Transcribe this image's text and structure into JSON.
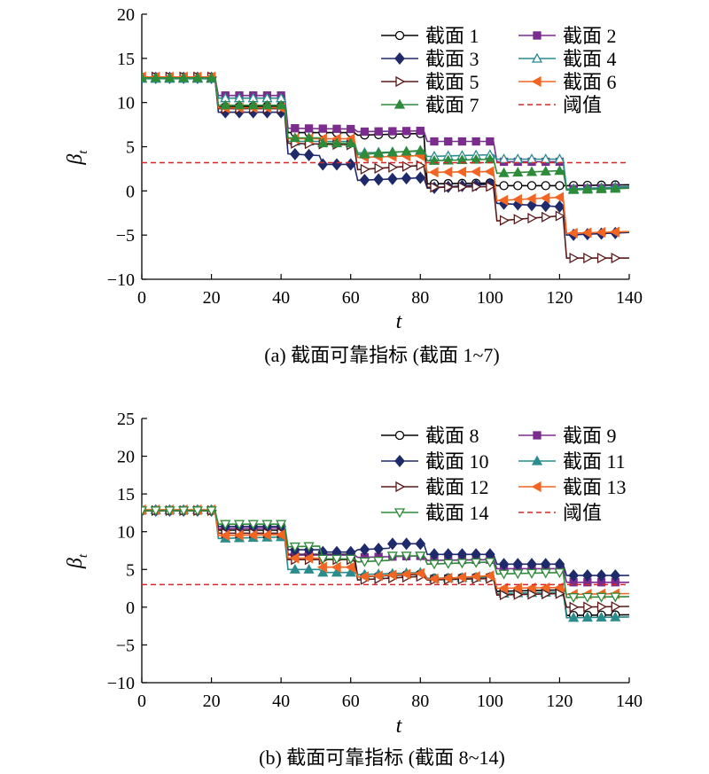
{
  "chart_data": [
    {
      "type": "line",
      "caption": "(a) 截面可靠指标 (截面 1~7)",
      "xlabel": "t",
      "ylabel": "β",
      "ylabel_sub": "t",
      "xlim": [
        0,
        140
      ],
      "ylim": [
        -10,
        20
      ],
      "xticks": [
        0,
        20,
        40,
        60,
        80,
        100,
        120,
        140
      ],
      "yticks": [
        -10,
        -5,
        0,
        5,
        10,
        15,
        20
      ],
      "legend_position": "top-right",
      "threshold": {
        "name": "阈值",
        "value": 3.2,
        "color": "#d62728"
      },
      "series": [
        {
          "name": "截面 1",
          "color": "#000000",
          "marker": "circle-open",
          "points": [
            [
              0,
              12.8
            ],
            [
              21,
              12.8
            ],
            [
              22,
              9.5
            ],
            [
              41,
              9.6
            ],
            [
              42,
              6.6
            ],
            [
              61,
              6.6
            ],
            [
              62,
              6.3
            ],
            [
              81,
              6.5
            ],
            [
              82,
              0.8
            ],
            [
              101,
              0.9
            ],
            [
              102,
              0.6
            ],
            [
              121,
              0.6
            ],
            [
              122,
              0.6
            ],
            [
              140,
              0.7
            ]
          ]
        },
        {
          "name": "截面 2",
          "color": "#7b2d8e",
          "marker": "square",
          "points": [
            [
              0,
              12.9
            ],
            [
              21,
              12.9
            ],
            [
              22,
              10.8
            ],
            [
              41,
              10.8
            ],
            [
              42,
              7.1
            ],
            [
              61,
              7.0
            ],
            [
              62,
              6.7
            ],
            [
              81,
              6.8
            ],
            [
              82,
              5.6
            ],
            [
              101,
              5.6
            ],
            [
              102,
              3.3
            ],
            [
              121,
              3.3
            ],
            [
              122,
              0.2
            ],
            [
              140,
              0.4
            ]
          ]
        },
        {
          "name": "截面 3",
          "color": "#1f2a6b",
          "marker": "diamond",
          "points": [
            [
              0,
              12.8
            ],
            [
              21,
              12.8
            ],
            [
              22,
              8.9
            ],
            [
              41,
              8.9
            ],
            [
              42,
              4.2
            ],
            [
              51,
              4.0
            ],
            [
              52,
              3.0
            ],
            [
              61,
              3.0
            ],
            [
              62,
              1.2
            ],
            [
              81,
              1.5
            ],
            [
              82,
              0.3
            ],
            [
              101,
              0.8
            ],
            [
              102,
              -1.4
            ],
            [
              121,
              -1.8
            ],
            [
              122,
              -5.0
            ],
            [
              140,
              -4.7
            ]
          ]
        },
        {
          "name": "截面 4",
          "color": "#2a8c8c",
          "marker": "triangle-open",
          "points": [
            [
              0,
              12.7
            ],
            [
              21,
              12.7
            ],
            [
              22,
              10.5
            ],
            [
              41,
              10.5
            ],
            [
              42,
              5.6
            ],
            [
              61,
              5.6
            ],
            [
              62,
              4.3
            ],
            [
              81,
              4.5
            ],
            [
              82,
              3.9
            ],
            [
              101,
              4.1
            ],
            [
              102,
              3.6
            ],
            [
              121,
              3.6
            ],
            [
              122,
              0.2
            ],
            [
              140,
              0.5
            ]
          ]
        },
        {
          "name": "截面 5",
          "color": "#5a1a1a",
          "marker": "triangle-right-open",
          "points": [
            [
              0,
              12.9
            ],
            [
              21,
              12.9
            ],
            [
              22,
              9.3
            ],
            [
              41,
              9.3
            ],
            [
              42,
              5.4
            ],
            [
              61,
              5.2
            ],
            [
              62,
              2.4
            ],
            [
              81,
              2.9
            ],
            [
              82,
              0.4
            ],
            [
              101,
              0.5
            ],
            [
              102,
              -3.4
            ],
            [
              121,
              -2.8
            ],
            [
              122,
              -7.6
            ],
            [
              140,
              -7.6
            ]
          ]
        },
        {
          "name": "截面 6",
          "color": "#f26522",
          "marker": "triangle-left",
          "points": [
            [
              0,
              12.9
            ],
            [
              21,
              12.9
            ],
            [
              22,
              9.4
            ],
            [
              41,
              9.4
            ],
            [
              42,
              5.9
            ],
            [
              61,
              5.9
            ],
            [
              62,
              3.8
            ],
            [
              81,
              4.0
            ],
            [
              82,
              2.1
            ],
            [
              101,
              2.2
            ],
            [
              102,
              -1.1
            ],
            [
              121,
              -0.7
            ],
            [
              122,
              -4.8
            ],
            [
              140,
              -4.6
            ]
          ]
        },
        {
          "name": "截面 7",
          "color": "#2e8b3a",
          "marker": "triangle",
          "points": [
            [
              0,
              12.8
            ],
            [
              21,
              12.8
            ],
            [
              22,
              9.7
            ],
            [
              41,
              9.7
            ],
            [
              42,
              6.0
            ],
            [
              51,
              6.0
            ],
            [
              52,
              5.4
            ],
            [
              61,
              5.4
            ],
            [
              62,
              4.1
            ],
            [
              81,
              4.6
            ],
            [
              82,
              3.4
            ],
            [
              101,
              3.6
            ],
            [
              102,
              2.0
            ],
            [
              121,
              2.3
            ],
            [
              122,
              0.1
            ],
            [
              140,
              0.3
            ]
          ]
        }
      ]
    },
    {
      "type": "line",
      "caption": "(b) 截面可靠指标 (截面 8~14)",
      "xlabel": "t",
      "ylabel": "β",
      "ylabel_sub": "t",
      "xlim": [
        0,
        140
      ],
      "ylim": [
        -10,
        25
      ],
      "xticks": [
        0,
        20,
        40,
        60,
        80,
        100,
        120,
        140
      ],
      "yticks": [
        -10,
        -5,
        0,
        5,
        10,
        15,
        20,
        25
      ],
      "legend_position": "top-right",
      "threshold": {
        "name": "阈值",
        "value": 3.0,
        "color": "#d62728"
      },
      "series": [
        {
          "name": "截面 8",
          "color": "#000000",
          "marker": "circle-open",
          "points": [
            [
              0,
              12.8
            ],
            [
              21,
              12.8
            ],
            [
              22,
              10.2
            ],
            [
              41,
              10.2
            ],
            [
              42,
              7.0
            ],
            [
              61,
              7.0
            ],
            [
              62,
              4.0
            ],
            [
              81,
              4.4
            ],
            [
              82,
              3.8
            ],
            [
              101,
              4.0
            ],
            [
              102,
              2.1
            ],
            [
              121,
              2.3
            ],
            [
              122,
              -1.1
            ],
            [
              140,
              -1.0
            ]
          ]
        },
        {
          "name": "截面 9",
          "color": "#7b2d8e",
          "marker": "square",
          "points": [
            [
              0,
              12.8
            ],
            [
              21,
              12.8
            ],
            [
              22,
              10.4
            ],
            [
              41,
              10.5
            ],
            [
              42,
              6.9
            ],
            [
              61,
              6.9
            ],
            [
              62,
              6.6
            ],
            [
              81,
              6.8
            ],
            [
              82,
              6.2
            ],
            [
              101,
              6.3
            ],
            [
              102,
              5.1
            ],
            [
              121,
              5.1
            ],
            [
              122,
              3.3
            ],
            [
              140,
              3.3
            ]
          ]
        },
        {
          "name": "截面 10",
          "color": "#1f2a6b",
          "marker": "diamond",
          "points": [
            [
              0,
              12.8
            ],
            [
              21,
              12.8
            ],
            [
              22,
              10.7
            ],
            [
              41,
              10.7
            ],
            [
              42,
              7.6
            ],
            [
              51,
              7.6
            ],
            [
              52,
              7.3
            ],
            [
              61,
              7.3
            ],
            [
              62,
              7.6
            ],
            [
              71,
              7.8
            ],
            [
              72,
              8.4
            ],
            [
              81,
              8.4
            ],
            [
              82,
              7.0
            ],
            [
              101,
              7.0
            ],
            [
              102,
              5.7
            ],
            [
              121,
              5.7
            ],
            [
              122,
              4.2
            ],
            [
              140,
              4.2
            ]
          ]
        },
        {
          "name": "截面 11",
          "color": "#2a8c8c",
          "marker": "triangle",
          "points": [
            [
              0,
              12.9
            ],
            [
              21,
              12.9
            ],
            [
              22,
              9.1
            ],
            [
              41,
              9.3
            ],
            [
              42,
              5.0
            ],
            [
              51,
              5.0
            ],
            [
              52,
              4.6
            ],
            [
              61,
              4.6
            ],
            [
              62,
              4.3
            ],
            [
              81,
              4.6
            ],
            [
              82,
              3.8
            ],
            [
              101,
              4.0
            ],
            [
              102,
              1.8
            ],
            [
              121,
              2.0
            ],
            [
              122,
              -1.4
            ],
            [
              140,
              -1.3
            ]
          ]
        },
        {
          "name": "截面 12",
          "color": "#5a1a1a",
          "marker": "triangle-right-open",
          "points": [
            [
              0,
              12.8
            ],
            [
              21,
              12.8
            ],
            [
              22,
              9.8
            ],
            [
              41,
              9.8
            ],
            [
              42,
              6.3
            ],
            [
              61,
              6.3
            ],
            [
              62,
              3.6
            ],
            [
              81,
              4.1
            ],
            [
              82,
              3.6
            ],
            [
              101,
              3.8
            ],
            [
              102,
              1.6
            ],
            [
              121,
              1.8
            ],
            [
              122,
              0.0
            ],
            [
              140,
              0.1
            ]
          ]
        },
        {
          "name": "截面 13",
          "color": "#f26522",
          "marker": "triangle-left",
          "points": [
            [
              0,
              12.9
            ],
            [
              21,
              12.9
            ],
            [
              22,
              9.5
            ],
            [
              41,
              9.6
            ],
            [
              42,
              6.5
            ],
            [
              51,
              6.5
            ],
            [
              52,
              5.3
            ],
            [
              61,
              5.3
            ],
            [
              62,
              4.0
            ],
            [
              81,
              4.5
            ],
            [
              82,
              3.7
            ],
            [
              101,
              4.2
            ],
            [
              102,
              2.5
            ],
            [
              121,
              2.6
            ],
            [
              122,
              1.7
            ],
            [
              140,
              1.8
            ]
          ]
        },
        {
          "name": "截面 14",
          "color": "#2e8b3a",
          "marker": "triangle-down-open",
          "points": [
            [
              0,
              12.8
            ],
            [
              21,
              12.8
            ],
            [
              22,
              11.0
            ],
            [
              41,
              11.0
            ],
            [
              42,
              8.0
            ],
            [
              51,
              8.1
            ],
            [
              52,
              6.4
            ],
            [
              61,
              6.4
            ],
            [
              62,
              6.0
            ],
            [
              71,
              6.2
            ],
            [
              72,
              6.8
            ],
            [
              81,
              6.8
            ],
            [
              82,
              5.7
            ],
            [
              101,
              6.0
            ],
            [
              102,
              4.4
            ],
            [
              121,
              4.6
            ],
            [
              122,
              1.3
            ],
            [
              140,
              1.4
            ]
          ]
        }
      ]
    }
  ]
}
